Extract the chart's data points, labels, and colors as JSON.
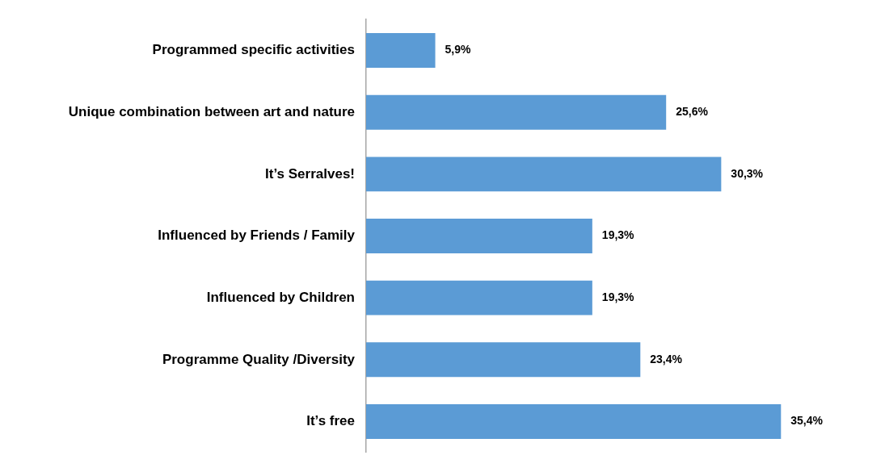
{
  "chart_data": {
    "type": "bar",
    "orientation": "horizontal",
    "categories": [
      "Programmed specific activities",
      "Unique combination between art and nature",
      "It’s Serralves!",
      "Influenced by Friends / Family",
      "Influenced by Children",
      "Programme Quality /Diversity",
      "It’s free"
    ],
    "values": [
      5.9,
      25.6,
      30.3,
      19.3,
      19.3,
      23.4,
      35.4
    ],
    "value_labels": [
      "5,9%",
      "25,6%",
      "30,3%",
      "19,3%",
      "19,3%",
      "23,4%",
      "35,4%"
    ],
    "color": "#5b9bd5",
    "grid": false,
    "legend": false
  }
}
